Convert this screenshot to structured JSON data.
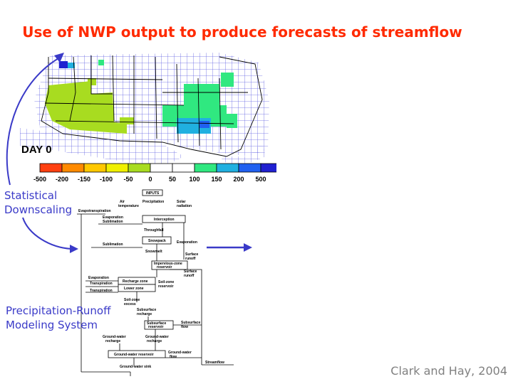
{
  "slide": {
    "title": "Use of NWP output to produce forecasts of streamflow",
    "credit": "Clark and Hay, 2004",
    "label_downscaling": [
      "Statistical",
      "Downscaling"
    ],
    "label_modeling": [
      "Precipitation-Runoff",
      "Modeling System"
    ]
  },
  "map": {
    "day_label": "DAY 0",
    "legend_ticks": [
      "-500",
      "-200",
      "-150",
      "-100",
      "-50",
      "0",
      "50",
      "100",
      "150",
      "200",
      "500"
    ],
    "legend_colors": [
      "#ff4010",
      "#ff8a00",
      "#ffc800",
      "#f0f000",
      "#a8dc20",
      "#ffffff",
      "#ffffff",
      "#30e880",
      "#20b0e0",
      "#2060f0",
      "#2020d0"
    ]
  },
  "flowchart": {
    "inputs": "INPUTS",
    "air_temperature": [
      "Air",
      "temperature"
    ],
    "precipitation": "Precipitation",
    "solar_radiation": [
      "Solar",
      "radiation"
    ],
    "evapotranspiration": "Evapotranspiration",
    "evaporation_1": "Evaporation",
    "sublimation_1": "Sublimation",
    "interception": "Interception",
    "throughfall": "Throughfall",
    "evaporation_2": "Evaporation",
    "sublimation_2": "Sublimation",
    "snowpack": "Snowpack",
    "snowmelt": "Snowmelt",
    "surface_runoff_1": [
      "Surface",
      "runoff"
    ],
    "impervious_zone": [
      "Impervious-zone",
      "reservoir"
    ],
    "surface_runoff_2": [
      "Surface",
      "runoff"
    ],
    "evaporation_3": "Evaporation",
    "transpiration_1": "Transpiration",
    "transpiration_2": "Transpiration",
    "recharge_zone": "Recharge zone",
    "lower_zone": "Lower zone",
    "soil_zone_reservoir": [
      "Soil-zone",
      "reservoir"
    ],
    "soil_zone_excess": [
      "Soil-zone",
      "excess"
    ],
    "subsurface_recharge_1": [
      "Subsurface",
      "recharge"
    ],
    "subsurface_reservoir": [
      "Subsurface",
      "reservoir"
    ],
    "subsurface_flow": [
      "Subsurface",
      "flow"
    ],
    "ground_water_recharge_1": [
      "Ground-water",
      "recharge"
    ],
    "ground_water_recharge_2": [
      "Ground-water",
      "recharge"
    ],
    "ground_water_reservoir": "Ground-water reservoir",
    "ground_water_flow": [
      "Ground-water",
      "flow"
    ],
    "ground_water_sink": "Ground-water sink",
    "streamflow": "Streamflow"
  },
  "colors": {
    "title": "#ff2a00",
    "side_text": "#3a3ac8",
    "arrow": "#3a3ac8",
    "credit": "#808080",
    "grid": "#5050e0"
  }
}
